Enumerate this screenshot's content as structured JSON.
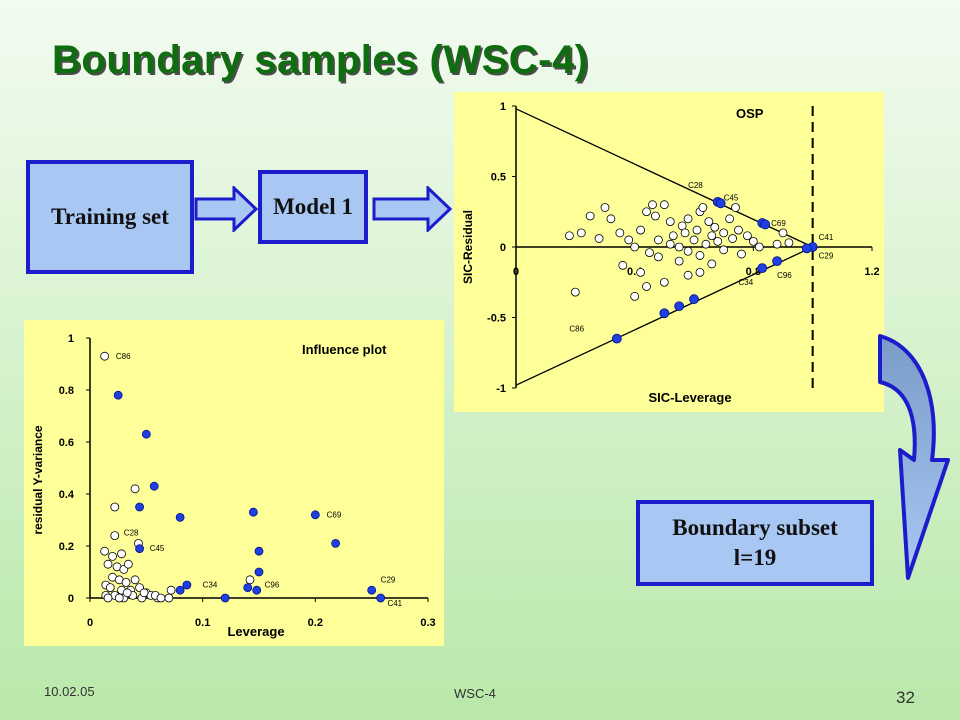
{
  "slide": {
    "title": "Boundary samples (WSC-4)",
    "footer_date": "10.02.05",
    "footer_center": "WSC-4",
    "page_number": "32"
  },
  "flow": {
    "training_label": "Training set",
    "model_label": "Model 1",
    "subset_label_line1": "Boundary subset",
    "subset_label_line2": "l=19"
  },
  "colors": {
    "title": "#0e6d0e",
    "box_fill": "#a9c7f3",
    "box_border": "#1c1ccc",
    "chart_bg": "#ffff99",
    "boundary_point": "#1f3fe0"
  },
  "chart_data": [
    {
      "type": "scatter",
      "title": "OSP",
      "xlabel": "SIC-Leverage",
      "ylabel": "SIC-Residual",
      "xlim": [
        0,
        1.2
      ],
      "ylim": [
        -1,
        1
      ],
      "x_ticks": [
        "0",
        "0.4",
        "0.8",
        "1.2"
      ],
      "y_ticks": [
        "1",
        "0.5",
        "0",
        "-0.5",
        "-1"
      ],
      "grid": false,
      "boundary_lines": [
        {
          "name": "upper",
          "points": [
            [
              0,
              0.98
            ],
            [
              1.0,
              0
            ]
          ]
        },
        {
          "name": "lower",
          "points": [
            [
              0,
              -0.98
            ],
            [
              1.0,
              0
            ]
          ]
        }
      ],
      "threshold_x": 1.0,
      "series": [
        {
          "points": [
            [
              0.18,
              0.08
            ],
            [
              0.22,
              0.1
            ],
            [
              0.25,
              0.22
            ],
            [
              0.28,
              0.06
            ],
            [
              0.3,
              0.28
            ],
            [
              0.32,
              0.2
            ],
            [
              0.35,
              0.1
            ],
            [
              0.38,
              0.05
            ],
            [
              0.4,
              0.0
            ],
            [
              0.42,
              0.12
            ],
            [
              0.44,
              0.25
            ],
            [
              0.46,
              0.3
            ],
            [
              0.47,
              0.22
            ],
            [
              0.48,
              0.05
            ],
            [
              0.5,
              0.3
            ],
            [
              0.52,
              0.18
            ],
            [
              0.53,
              0.08
            ],
            [
              0.55,
              0.0
            ],
            [
              0.56,
              0.15
            ],
            [
              0.57,
              0.1
            ],
            [
              0.58,
              0.2
            ],
            [
              0.6,
              0.05
            ],
            [
              0.61,
              0.12
            ],
            [
              0.62,
              0.25
            ],
            [
              0.63,
              0.28
            ],
            [
              0.64,
              0.02
            ],
            [
              0.65,
              0.18
            ],
            [
              0.66,
              0.08
            ],
            [
              0.67,
              0.14
            ],
            [
              0.68,
              0.04
            ],
            [
              0.7,
              0.1
            ],
            [
              0.72,
              0.2
            ],
            [
              0.73,
              0.06
            ],
            [
              0.75,
              0.12
            ],
            [
              0.78,
              0.08
            ],
            [
              0.8,
              0.04
            ],
            [
              0.82,
              0.0
            ],
            [
              0.74,
              0.28
            ],
            [
              0.52,
              0.02
            ],
            [
              0.45,
              -0.04
            ],
            [
              0.48,
              -0.07
            ],
            [
              0.55,
              -0.1
            ],
            [
              0.58,
              -0.03
            ],
            [
              0.62,
              -0.06
            ],
            [
              0.66,
              -0.12
            ],
            [
              0.7,
              -0.02
            ],
            [
              0.76,
              -0.05
            ],
            [
              0.36,
              -0.13
            ],
            [
              0.42,
              -0.18
            ],
            [
              0.44,
              -0.28
            ],
            [
              0.4,
              -0.35
            ],
            [
              0.5,
              -0.25
            ],
            [
              0.58,
              -0.2
            ],
            [
              0.62,
              -0.18
            ],
            [
              0.2,
              -0.32
            ],
            [
              0.9,
              0.1
            ],
            [
              0.92,
              0.03
            ],
            [
              0.88,
              0.02
            ]
          ]
        },
        {
          "points": [
            [
              0.68,
              0.32
            ],
            [
              0.69,
              0.31
            ],
            [
              0.83,
              0.17
            ],
            [
              0.84,
              0.16
            ],
            [
              1.0,
              0.0
            ],
            [
              0.98,
              -0.01
            ],
            [
              0.88,
              -0.1
            ],
            [
              0.83,
              -0.15
            ],
            [
              0.6,
              -0.37
            ],
            [
              0.55,
              -0.42
            ],
            [
              0.5,
              -0.47
            ],
            [
              0.34,
              -0.65
            ]
          ]
        }
      ],
      "annotations": [
        {
          "text": "C28",
          "x": 0.58,
          "y": 0.42
        },
        {
          "text": "C45",
          "x": 0.7,
          "y": 0.33
        },
        {
          "text": "C69",
          "x": 0.86,
          "y": 0.15
        },
        {
          "text": "C41",
          "x": 1.02,
          "y": 0.05
        },
        {
          "text": "C29",
          "x": 1.02,
          "y": -0.08
        },
        {
          "text": "C96",
          "x": 0.88,
          "y": -0.22
        },
        {
          "text": "C34",
          "x": 0.75,
          "y": -0.27
        },
        {
          "text": "C86",
          "x": 0.18,
          "y": -0.6
        }
      ]
    },
    {
      "type": "scatter",
      "title": "Influence plot",
      "xlabel": "Leverage",
      "ylabel": "residual Y-variance",
      "xlim": [
        0,
        0.3
      ],
      "ylim": [
        0,
        1
      ],
      "x_ticks": [
        "0",
        "0.1",
        "0.2",
        "0.3"
      ],
      "y_ticks": [
        "1",
        "0.8",
        "0.6",
        "0.4",
        "0.2",
        "0"
      ],
      "grid": false,
      "series": [
        {
          "points": [
            [
              0.013,
              0.93
            ],
            [
              0.04,
              0.42
            ],
            [
              0.022,
              0.35
            ],
            [
              0.022,
              0.24
            ],
            [
              0.013,
              0.18
            ],
            [
              0.02,
              0.16
            ],
            [
              0.028,
              0.17
            ],
            [
              0.016,
              0.13
            ],
            [
              0.024,
              0.12
            ],
            [
              0.03,
              0.11
            ],
            [
              0.034,
              0.13
            ],
            [
              0.02,
              0.08
            ],
            [
              0.026,
              0.07
            ],
            [
              0.032,
              0.06
            ],
            [
              0.04,
              0.07
            ],
            [
              0.014,
              0.05
            ],
            [
              0.018,
              0.04
            ],
            [
              0.028,
              0.03
            ],
            [
              0.036,
              0.03
            ],
            [
              0.044,
              0.04
            ],
            [
              0.05,
              0.02
            ],
            [
              0.022,
              0.01
            ],
            [
              0.03,
              0.0
            ],
            [
              0.038,
              0.01
            ],
            [
              0.046,
              0.0
            ],
            [
              0.054,
              0.01
            ],
            [
              0.06,
              0.0
            ],
            [
              0.07,
              0.0
            ],
            [
              0.014,
              0.01
            ],
            [
              0.016,
              0.0
            ],
            [
              0.043,
              0.21
            ],
            [
              0.048,
              0.02
            ],
            [
              0.058,
              0.01
            ],
            [
              0.063,
              0.0
            ],
            [
              0.142,
              0.07
            ],
            [
              0.072,
              0.03
            ],
            [
              0.033,
              0.02
            ],
            [
              0.026,
              0.0
            ]
          ]
        },
        {
          "points": [
            [
              0.025,
              0.78
            ],
            [
              0.05,
              0.63
            ],
            [
              0.044,
              0.35
            ],
            [
              0.057,
              0.43
            ],
            [
              0.08,
              0.31
            ],
            [
              0.044,
              0.19
            ],
            [
              0.145,
              0.33
            ],
            [
              0.2,
              0.32
            ],
            [
              0.218,
              0.21
            ],
            [
              0.15,
              0.18
            ],
            [
              0.15,
              0.1
            ],
            [
              0.14,
              0.04
            ],
            [
              0.148,
              0.03
            ],
            [
              0.12,
              0.0
            ],
            [
              0.086,
              0.05
            ],
            [
              0.08,
              0.03
            ],
            [
              0.25,
              0.03
            ],
            [
              0.258,
              0.0
            ]
          ]
        }
      ],
      "annotations": [
        {
          "text": "C86",
          "x": 0.023,
          "y": 0.92
        },
        {
          "text": "C28",
          "x": 0.03,
          "y": 0.24
        },
        {
          "text": "C45",
          "x": 0.053,
          "y": 0.18
        },
        {
          "text": "C69",
          "x": 0.21,
          "y": 0.31
        },
        {
          "text": "C34",
          "x": 0.1,
          "y": 0.04
        },
        {
          "text": "C96",
          "x": 0.155,
          "y": 0.04
        },
        {
          "text": "C29",
          "x": 0.258,
          "y": 0.06
        },
        {
          "text": "C41",
          "x": 0.264,
          "y": -0.03
        }
      ]
    }
  ]
}
